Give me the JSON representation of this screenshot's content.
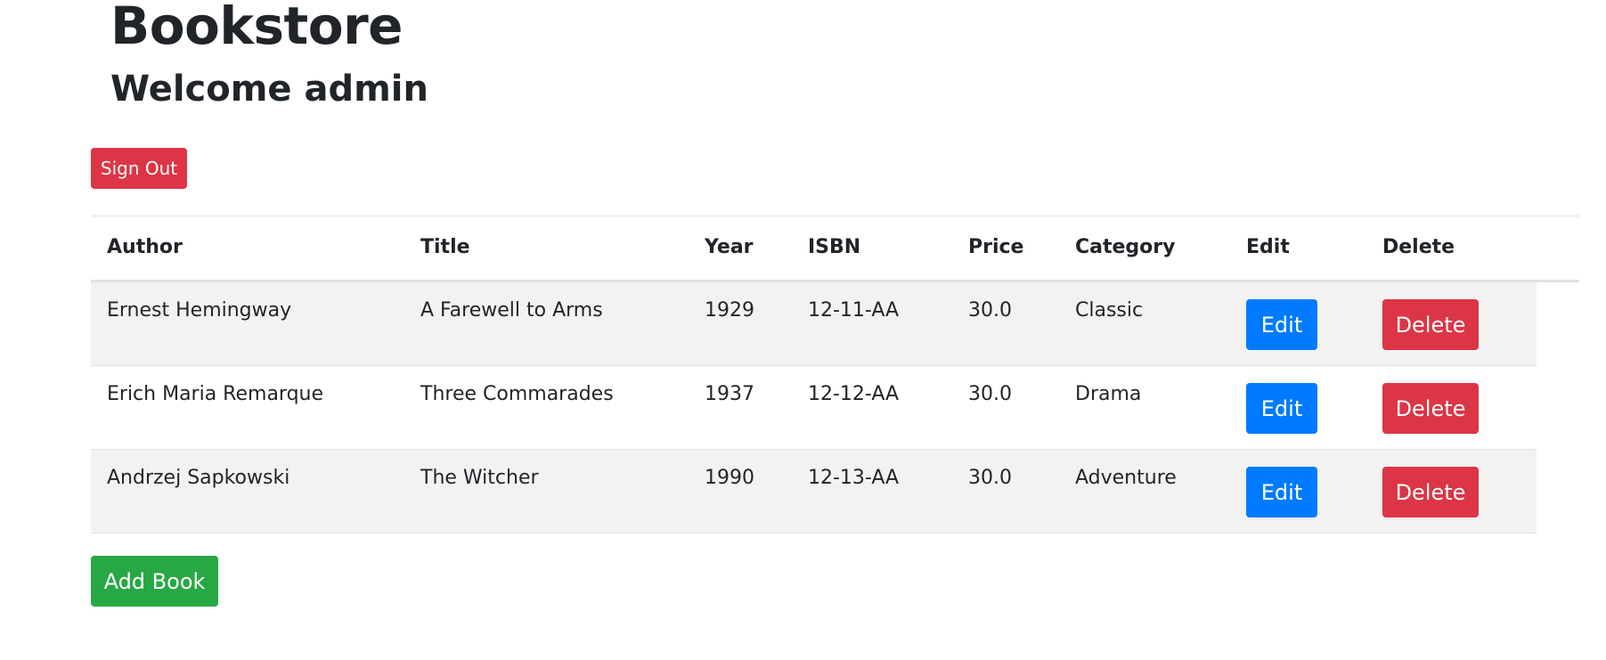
{
  "header": {
    "title": "Bookstore",
    "subtitle": "Welcome admin"
  },
  "actions": {
    "sign_out_label": "Sign Out",
    "add_book_label": "Add Book"
  },
  "table": {
    "columns": [
      "Author",
      "Title",
      "Year",
      "ISBN",
      "Price",
      "Category",
      "Edit",
      "Delete"
    ],
    "rows": [
      {
        "author": "Ernest Hemingway",
        "title": "A Farewell to Arms",
        "year": "1929",
        "isbn": "12-11-AA",
        "price": "30.0",
        "category": "Classic",
        "edit_label": "Edit",
        "delete_label": "Delete"
      },
      {
        "author": "Erich Maria Remarque",
        "title": "Three Commarades",
        "year": "1937",
        "isbn": "12-12-AA",
        "price": "30.0",
        "category": "Drama",
        "edit_label": "Edit",
        "delete_label": "Delete"
      },
      {
        "author": "Andrzej Sapkowski",
        "title": "The Witcher",
        "year": "1990",
        "isbn": "12-13-AA",
        "price": "30.0",
        "category": "Adventure",
        "edit_label": "Edit",
        "delete_label": "Delete"
      }
    ]
  },
  "colors": {
    "danger": "#dc3545",
    "primary": "#007bff",
    "success": "#28a745",
    "stripe": "#f2f2f2"
  }
}
